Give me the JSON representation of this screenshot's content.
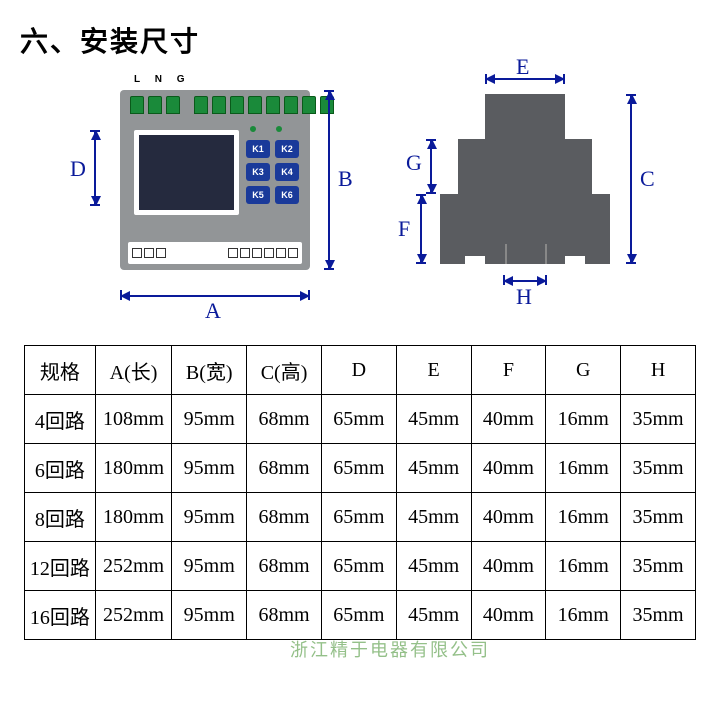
{
  "title": "六、安装尺寸",
  "front": {
    "lng": "L N G",
    "buttons": [
      "K1",
      "K2",
      "K3",
      "K4",
      "K5",
      "K6"
    ],
    "dims": {
      "A": "A",
      "B": "B",
      "D": "D"
    }
  },
  "side": {
    "dims": {
      "C": "C",
      "E": "E",
      "F": "F",
      "G": "G",
      "H": "H"
    }
  },
  "colors": {
    "device_body": "#929597",
    "terminal": "#1a8a3a",
    "screen": "#252a3e",
    "button": "#1a3a9a",
    "side_body": "#5a5c60",
    "dim_line": "#0a1a9a"
  },
  "table": {
    "headers": [
      "规格",
      "A(长)",
      "B(宽)",
      "C(高)",
      "D",
      "E",
      "F",
      "G",
      "H"
    ],
    "rows": [
      [
        "4回路",
        "108mm",
        "95mm",
        "68mm",
        "65mm",
        "45mm",
        "40mm",
        "16mm",
        "35mm"
      ],
      [
        "6回路",
        "180mm",
        "95mm",
        "68mm",
        "65mm",
        "45mm",
        "40mm",
        "16mm",
        "35mm"
      ],
      [
        "8回路",
        "180mm",
        "95mm",
        "68mm",
        "65mm",
        "45mm",
        "40mm",
        "16mm",
        "35mm"
      ],
      [
        "12回路",
        "252mm",
        "95mm",
        "68mm",
        "65mm",
        "45mm",
        "40mm",
        "16mm",
        "35mm"
      ],
      [
        "16回路",
        "252mm",
        "95mm",
        "68mm",
        "65mm",
        "45mm",
        "40mm",
        "16mm",
        "35mm"
      ]
    ]
  },
  "watermark": "浙江精于电器有限公司"
}
